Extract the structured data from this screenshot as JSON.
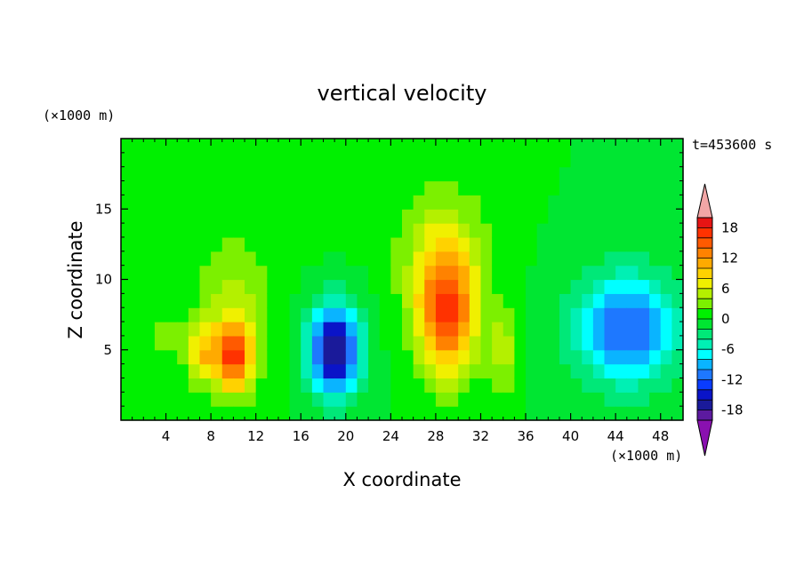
{
  "chart_data": {
    "type": "heatmap",
    "title": "vertical velocity",
    "xlabel": "X coordinate",
    "ylabel": "Z coordinate",
    "x_unit_label": "(×1000 m)",
    "y_unit_label": "(×1000 m)",
    "time_label": "t=453600 s",
    "xlim": [
      0,
      50
    ],
    "ylim": [
      0,
      20
    ],
    "x_ticks": [
      4,
      8,
      12,
      16,
      20,
      24,
      28,
      32,
      36,
      40,
      44,
      48
    ],
    "y_ticks": [
      5,
      10,
      15
    ],
    "grid": false,
    "colorbar": {
      "levels": [
        -20,
        -18,
        -16,
        -14,
        -12,
        -10,
        -8,
        -6,
        -4,
        -2,
        0,
        2,
        4,
        6,
        8,
        10,
        12,
        14,
        16,
        18,
        20
      ],
      "tick_labels": [
        "18",
        "12",
        "6",
        "0",
        "-6",
        "-12",
        "-18"
      ],
      "tick_values": [
        18,
        12,
        6,
        0,
        -6,
        -12,
        -18
      ],
      "under_color": "#8a10b0",
      "over_color": "#f2a6a6",
      "colors": [
        "#5c1aa0",
        "#1a1a9a",
        "#0a14c8",
        "#0a3cff",
        "#1e78ff",
        "#0ab4ff",
        "#00ffff",
        "#00f0b4",
        "#00e878",
        "#00e632",
        "#00f000",
        "#7cf000",
        "#b4f000",
        "#f0f000",
        "#ffd200",
        "#ffaa00",
        "#ff8200",
        "#ff5a00",
        "#ff3200",
        "#e61414"
      ]
    },
    "features": [
      {
        "x": 10,
        "z": 4.5,
        "amp": 15,
        "sx": 1.8,
        "sz": 2.4
      },
      {
        "x": 7,
        "z": 4.8,
        "amp": 8,
        "sx": 1.2,
        "sz": 2.2
      },
      {
        "x": 10,
        "z": 8,
        "amp": 5,
        "sx": 3.2,
        "sz": 4.5
      },
      {
        "x": 19,
        "z": 5,
        "amp": -19,
        "sx": 2.2,
        "sz": 3.2
      },
      {
        "x": 29,
        "z": 7.5,
        "amp": 15,
        "sx": 2.6,
        "sz": 4.5
      },
      {
        "x": 28.5,
        "z": 12,
        "amp": 5,
        "sx": 4,
        "sz": 5
      },
      {
        "x": 34,
        "z": 5,
        "amp": 5,
        "sx": 1.2,
        "sz": 3
      },
      {
        "x": 45,
        "z": 6.5,
        "amp": -12,
        "sx": 4.5,
        "sz": 4
      },
      {
        "x": 4,
        "z": 6,
        "amp": 3,
        "sx": 1.2,
        "sz": 2
      },
      {
        "x": 13,
        "z": 16,
        "amp": 1,
        "sx": 8,
        "sz": 4
      }
    ]
  }
}
